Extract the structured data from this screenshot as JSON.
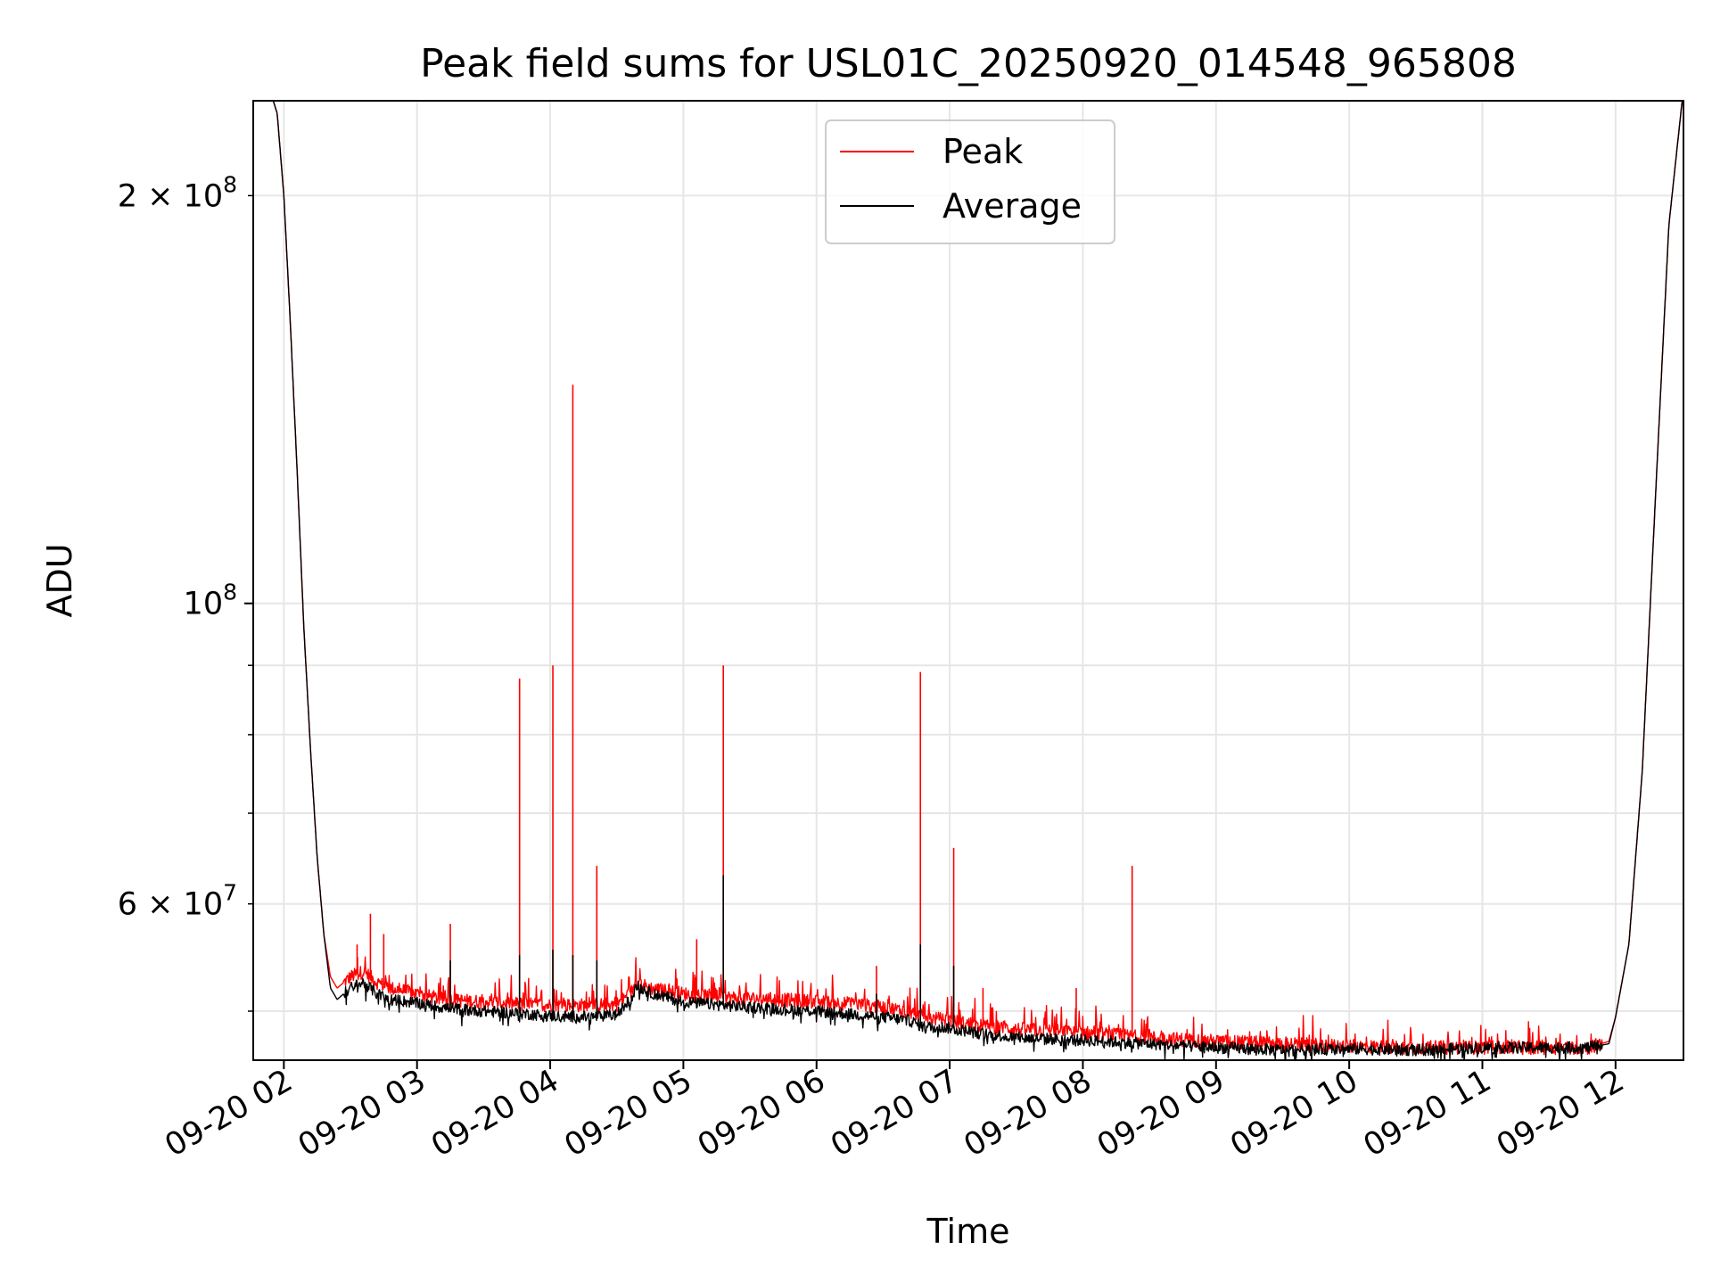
{
  "chart_data": {
    "type": "line",
    "title": "Peak field sums for USL01C_20250920_014548_965808",
    "xlabel": "Time",
    "ylabel": "ADU",
    "yscale": "log",
    "xlim": [
      1.77,
      12.51
    ],
    "ylim": [
      46000000,
      235000000
    ],
    "grid": true,
    "legend_location": "upper center",
    "x_tick_labels": [
      {
        "x": 2,
        "label": "09-20 02"
      },
      {
        "x": 3,
        "label": "09-20 03"
      },
      {
        "x": 4,
        "label": "09-20 04"
      },
      {
        "x": 5,
        "label": "09-20 05"
      },
      {
        "x": 6,
        "label": "09-20 06"
      },
      {
        "x": 7,
        "label": "09-20 07"
      },
      {
        "x": 8,
        "label": "09-20 08"
      },
      {
        "x": 9,
        "label": "09-20 09"
      },
      {
        "x": 10,
        "label": "09-20 10"
      },
      {
        "x": 11,
        "label": "09-20 11"
      },
      {
        "x": 12,
        "label": "09-20 12"
      }
    ],
    "y_major_ticks": [
      {
        "value": 100000000,
        "base": "10",
        "exp": "8"
      }
    ],
    "y_minor_ticks": [
      {
        "value": 50000000,
        "label": ""
      },
      {
        "value": 60000000,
        "label": "6 × 10",
        "exp": "7"
      },
      {
        "value": 70000000,
        "label": ""
      },
      {
        "value": 80000000,
        "label": ""
      },
      {
        "value": 90000000,
        "label": ""
      },
      {
        "value": 200000000,
        "label": "2 × 10",
        "exp": "8"
      }
    ],
    "series": [
      {
        "name": "Peak",
        "color": "#ff0000",
        "x": [
          1.77,
          1.92,
          1.95,
          2.0,
          2.05,
          2.1,
          2.15,
          2.2,
          2.25,
          2.3,
          2.35,
          2.4,
          2.45,
          2.5,
          2.6,
          2.7,
          2.8,
          3.0,
          3.2,
          3.5,
          3.8,
          4.0,
          4.3,
          4.5,
          4.6,
          4.65,
          4.75,
          5.0,
          5.3,
          5.7,
          6.0,
          6.3,
          6.5,
          6.7,
          6.8,
          7.0,
          7.2,
          7.5,
          8.0,
          8.5,
          9.0,
          9.5,
          10.0,
          10.5,
          11.0,
          11.5,
          11.8,
          11.95,
          12.0,
          12.1,
          12.2,
          12.3,
          12.4,
          12.5
        ],
        "y": [
          235000000,
          235000000,
          230000000,
          200000000,
          160000000,
          125000000,
          96000000,
          78000000,
          65000000,
          57000000,
          53000000,
          52000000,
          52500000,
          53000000,
          53500000,
          52500000,
          52000000,
          51500000,
          51000000,
          50800000,
          50600000,
          50500000,
          50500000,
          50600000,
          51500000,
          52500000,
          52000000,
          51500000,
          51200000,
          51000000,
          50800000,
          50600000,
          50300000,
          50000000,
          49500000,
          49200000,
          48800000,
          48500000,
          48200000,
          47800000,
          47500000,
          47300000,
          47100000,
          47000000,
          47000000,
          47000000,
          47000000,
          47500000,
          49500000,
          56000000,
          75000000,
          120000000,
          190000000,
          235000000
        ],
        "spikes": [
          {
            "x": 2.55,
            "y": 56000000
          },
          {
            "x": 2.65,
            "y": 59000000
          },
          {
            "x": 2.75,
            "y": 57000000
          },
          {
            "x": 3.25,
            "y": 58000000
          },
          {
            "x": 3.77,
            "y": 88000000
          },
          {
            "x": 4.02,
            "y": 90000000
          },
          {
            "x": 4.17,
            "y": 145000000
          },
          {
            "x": 4.35,
            "y": 64000000
          },
          {
            "x": 5.1,
            "y": 56500000
          },
          {
            "x": 5.3,
            "y": 90000000
          },
          {
            "x": 6.45,
            "y": 54000000
          },
          {
            "x": 6.78,
            "y": 89000000
          },
          {
            "x": 7.03,
            "y": 66000000
          },
          {
            "x": 7.25,
            "y": 52000000
          },
          {
            "x": 7.95,
            "y": 52000000
          },
          {
            "x": 8.37,
            "y": 64000000
          }
        ]
      },
      {
        "name": "Average",
        "color": "#000000",
        "x": [
          1.77,
          1.92,
          1.95,
          2.0,
          2.05,
          2.1,
          2.15,
          2.2,
          2.25,
          2.3,
          2.35,
          2.4,
          2.45,
          2.5,
          2.6,
          2.7,
          2.8,
          3.0,
          3.2,
          3.5,
          3.8,
          4.0,
          4.3,
          4.5,
          4.6,
          4.65,
          4.75,
          5.0,
          5.3,
          5.7,
          6.0,
          6.3,
          6.5,
          6.7,
          6.8,
          7.0,
          7.2,
          7.5,
          8.0,
          8.5,
          9.0,
          9.5,
          10.0,
          10.5,
          11.0,
          11.5,
          11.8,
          11.95,
          12.0,
          12.1,
          12.2,
          12.3,
          12.4,
          12.5
        ],
        "y": [
          235000000,
          235000000,
          230000000,
          200000000,
          160000000,
          125000000,
          96000000,
          78000000,
          65000000,
          57000000,
          52000000,
          51000000,
          51500000,
          52000000,
          52500000,
          51500000,
          51000000,
          50700000,
          50300000,
          50000000,
          49800000,
          49600000,
          49500000,
          49700000,
          51000000,
          52200000,
          51600000,
          50800000,
          50500000,
          50200000,
          50000000,
          49700000,
          49500000,
          49200000,
          48700000,
          48600000,
          48200000,
          47800000,
          47600000,
          47300000,
          47000000,
          46800000,
          46900000,
          46800000,
          47000000,
          47000000,
          47000000,
          47300000,
          49500000,
          56000000,
          75000000,
          120000000,
          190000000,
          235000000
        ],
        "spikes": [
          {
            "x": 3.25,
            "y": 54500000
          },
          {
            "x": 3.77,
            "y": 55000000
          },
          {
            "x": 4.02,
            "y": 55500000
          },
          {
            "x": 4.17,
            "y": 55000000
          },
          {
            "x": 4.35,
            "y": 54500000
          },
          {
            "x": 5.3,
            "y": 63000000
          },
          {
            "x": 6.45,
            "y": 51500000
          },
          {
            "x": 6.78,
            "y": 56000000
          },
          {
            "x": 7.03,
            "y": 54000000
          }
        ]
      }
    ]
  }
}
